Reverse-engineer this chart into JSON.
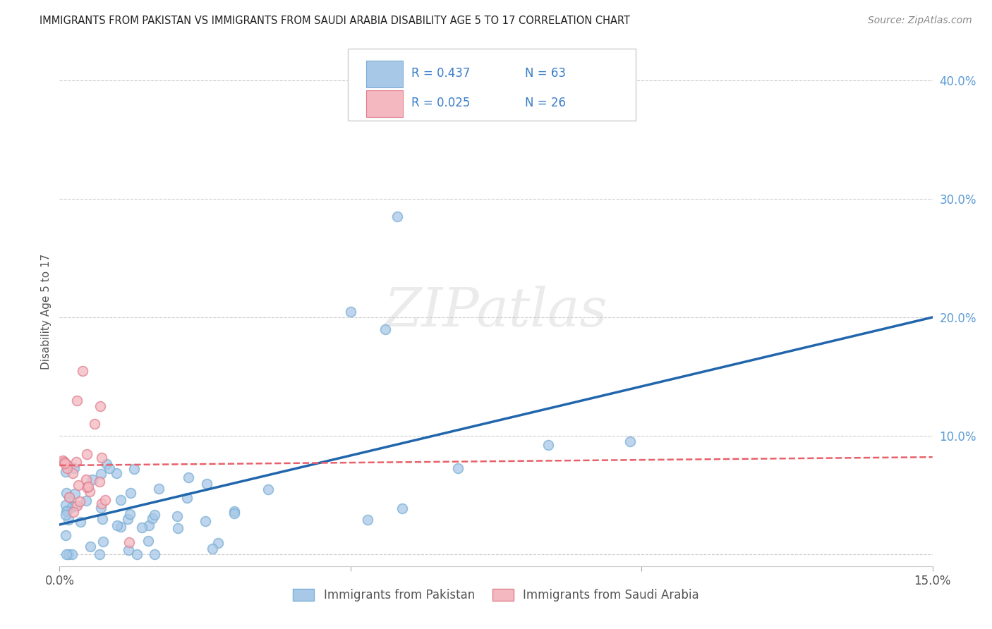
{
  "title": "IMMIGRANTS FROM PAKISTAN VS IMMIGRANTS FROM SAUDI ARABIA DISABILITY AGE 5 TO 17 CORRELATION CHART",
  "source": "Source: ZipAtlas.com",
  "ylabel": "Disability Age 5 to 17",
  "xlim": [
    0.0,
    0.15
  ],
  "ylim": [
    -0.01,
    0.42
  ],
  "pakistan_color": "#a8c8e8",
  "pakistan_edge_color": "#7aafd4",
  "saudi_color": "#f4b8c0",
  "saudi_edge_color": "#e08090",
  "pakistan_line_color": "#2166ac",
  "saudi_line_color": "#e8606a",
  "R_pakistan": 0.437,
  "N_pakistan": 63,
  "R_saudi": 0.025,
  "N_saudi": 26,
  "legend_label_pakistan": "Immigrants from Pakistan",
  "legend_label_saudi": "Immigrants from Saudi Arabia",
  "pak_line_x0": 0.0,
  "pak_line_y0": 0.025,
  "pak_line_x1": 0.15,
  "pak_line_y1": 0.2,
  "sau_line_x0": 0.0,
  "sau_line_y0": 0.075,
  "sau_line_x1": 0.15,
  "sau_line_y1": 0.082,
  "yticks": [
    0.0,
    0.1,
    0.2,
    0.3,
    0.4
  ],
  "ytick_labels_right": [
    "",
    "10.0%",
    "20.0%",
    "30.0%",
    "40.0%"
  ],
  "xticks": [
    0.0,
    0.05,
    0.1,
    0.15
  ],
  "xtick_labels": [
    "0.0%",
    "",
    "",
    "15.0%"
  ]
}
